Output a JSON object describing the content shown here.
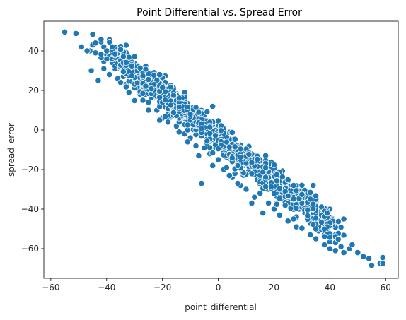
{
  "chart_data": {
    "type": "scatter",
    "title": "Point Differential vs. Spread Error",
    "xlabel": "point_differential",
    "ylabel": "spread_error",
    "xlim": [
      -62.5,
      64.5
    ],
    "ylim": [
      -75,
      55
    ],
    "xticks": [
      -60,
      -40,
      -20,
      0,
      20,
      40,
      60
    ],
    "yticks": [
      -60,
      -40,
      -20,
      0,
      20,
      40
    ],
    "grid": false,
    "legend": "none",
    "point_color": "#1f77b4",
    "point_edge_color": "#ffffff",
    "trend": {
      "description": "dense band along spread_error ≈ -1.1 × point_differential - 4",
      "slope": -1.1,
      "intercept": -4,
      "band_halfwidth": 3.5
    },
    "series": [
      {
        "points": [
          [
            -55,
            49.5
          ],
          [
            -51,
            48.8
          ],
          [
            -49,
            42
          ],
          [
            -46,
            40
          ],
          [
            -45,
            43
          ],
          [
            -44,
            44
          ],
          [
            -45.5,
            30
          ],
          [
            -43,
            25
          ],
          [
            -42,
            38
          ],
          [
            -44,
            39
          ],
          [
            -40,
            36
          ],
          [
            -38,
            37
          ],
          [
            -39,
            28
          ],
          [
            -36,
            26
          ],
          [
            -35,
            24
          ],
          [
            -33,
            23
          ],
          [
            -30,
            22
          ],
          [
            -28,
            18
          ],
          [
            -25,
            14
          ],
          [
            -22,
            10
          ],
          [
            -20,
            6
          ],
          [
            -18,
            4
          ],
          [
            -15,
            2
          ],
          [
            -12,
            -2
          ],
          [
            -10,
            -4
          ],
          [
            -8,
            -8
          ],
          [
            -5,
            -9
          ],
          [
            -3,
            -12
          ],
          [
            0,
            -15
          ],
          [
            2,
            -20
          ],
          [
            5,
            -24
          ],
          [
            8,
            -28
          ],
          [
            10,
            -30
          ],
          [
            15,
            -32
          ],
          [
            18,
            -37
          ],
          [
            20,
            -40
          ],
          [
            22,
            -43
          ],
          [
            25,
            -46
          ],
          [
            28,
            -49
          ],
          [
            30,
            -50
          ],
          [
            33,
            -53
          ],
          [
            35,
            -55
          ],
          [
            38,
            -58
          ],
          [
            40,
            -60
          ],
          [
            42,
            -61
          ],
          [
            45,
            -62
          ],
          [
            47,
            -60
          ],
          [
            50,
            -62
          ],
          [
            52,
            -64
          ],
          [
            54,
            -65
          ],
          [
            55,
            -68.5
          ],
          [
            58,
            -67.5
          ],
          [
            59,
            -67.5
          ],
          [
            59,
            -64.5
          ],
          [
            -30,
            30
          ],
          [
            -25,
            27
          ],
          [
            -20,
            20
          ],
          [
            -15,
            15
          ],
          [
            -10,
            10
          ],
          [
            -5,
            5
          ],
          [
            0,
            0
          ],
          [
            5,
            -5
          ],
          [
            10,
            -10
          ],
          [
            15,
            -15
          ],
          [
            20,
            -20
          ],
          [
            25,
            -25
          ],
          [
            30,
            -30
          ],
          [
            35,
            -35
          ],
          [
            40,
            -40
          ],
          [
            45,
            -45
          ],
          [
            -6,
            -27
          ],
          [
            7,
            -27
          ],
          [
            4,
            -23
          ],
          [
            28,
            -44
          ],
          [
            12,
            -37
          ],
          [
            16,
            -42
          ],
          [
            -14,
            -1
          ],
          [
            -21,
            5
          ],
          [
            -25,
            10
          ],
          [
            -7,
            -13
          ],
          [
            3,
            -19
          ],
          [
            13,
            -34
          ],
          [
            21,
            -37
          ],
          [
            33,
            -46
          ],
          [
            36,
            -51
          ],
          [
            44,
            -59
          ],
          [
            48,
            -58
          ],
          [
            -47,
            40
          ],
          [
            -41,
            31
          ],
          [
            -37,
            31
          ],
          [
            -32,
            19
          ],
          [
            -27,
            15
          ],
          [
            -18,
            9
          ],
          [
            -11,
            -6
          ],
          [
            -2,
            -18
          ],
          [
            6,
            -22
          ],
          [
            18,
            -30
          ],
          [
            24,
            -35
          ],
          [
            38,
            -49
          ],
          [
            42,
            -53
          ]
        ]
      }
    ]
  }
}
